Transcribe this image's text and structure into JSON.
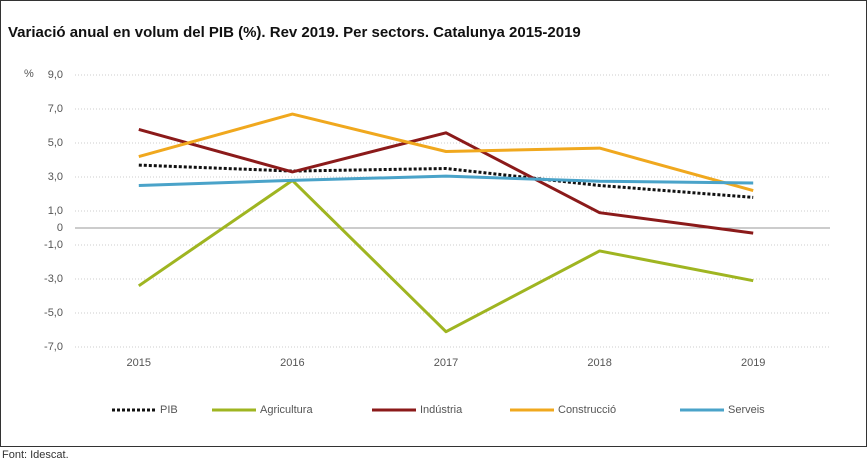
{
  "chart_data": {
    "type": "line",
    "title": "Variació anual en volum del PIB (%). Rev 2019. Per sectors. Catalunya 2015-2019",
    "ylabel": "%",
    "source": "Font: Idescat.",
    "categories": [
      "2015",
      "2016",
      "2017",
      "2018",
      "2019"
    ],
    "series": [
      {
        "name": "PIB",
        "color": "#111111",
        "dashed": true,
        "values": [
          3.7,
          3.35,
          3.5,
          2.5,
          1.8
        ]
      },
      {
        "name": "Agricultura",
        "color": "#9fb521",
        "values": [
          -3.4,
          2.8,
          -6.1,
          -1.35,
          -3.1
        ]
      },
      {
        "name": "Indústria",
        "color": "#8b1a1a",
        "values": [
          5.8,
          3.3,
          5.6,
          0.9,
          -0.3
        ]
      },
      {
        "name": "Construcció",
        "color": "#f0a81e",
        "values": [
          4.2,
          6.7,
          4.5,
          4.7,
          2.2
        ]
      },
      {
        "name": "Serveis",
        "color": "#4aa3c9",
        "values": [
          2.5,
          2.8,
          3.05,
          2.75,
          2.65
        ]
      }
    ],
    "ylim": [
      -7,
      9
    ],
    "yticks": [
      {
        "value": 9,
        "label": "9,0"
      },
      {
        "value": 7,
        "label": "7,0"
      },
      {
        "value": 5,
        "label": "5,0"
      },
      {
        "value": 3,
        "label": "3,0"
      },
      {
        "value": 1,
        "label": "1,0"
      },
      0,
      {
        "value": -1,
        "label": "-1,0"
      },
      {
        "value": -3,
        "label": "-3,0"
      },
      {
        "value": -5,
        "label": "-5,0"
      },
      {
        "value": -7,
        "label": "-7,0"
      }
    ],
    "grid": true,
    "legend": "bottom"
  }
}
